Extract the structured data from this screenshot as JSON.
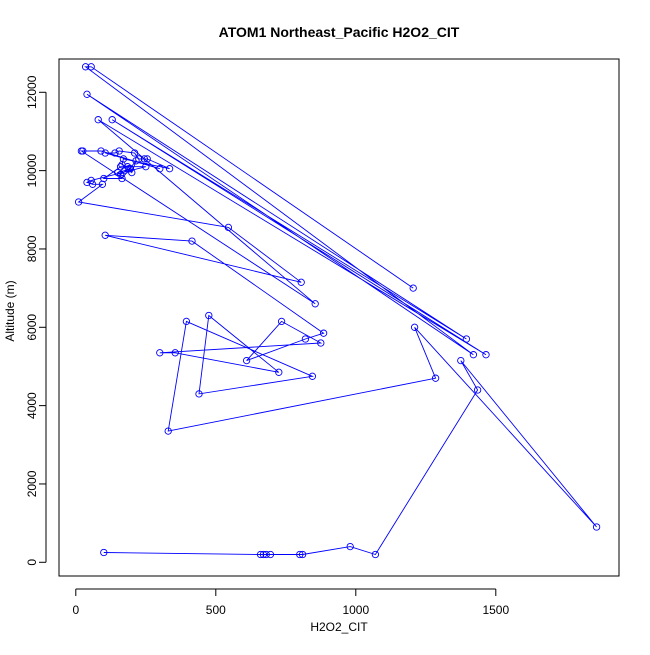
{
  "chart_data": {
    "type": "line",
    "title": "ATOM1 Northeast_Pacific H2O2_CIT",
    "xlabel": "H2O2_CIT",
    "ylabel": "Altitude (m)",
    "xlim": [
      -60,
      1940
    ],
    "ylim": [
      -350,
      12850
    ],
    "x_ticks": [
      0,
      500,
      1000,
      1500
    ],
    "y_ticks": [
      0,
      2000,
      4000,
      6000,
      8000,
      10000,
      12000
    ],
    "series": [
      {
        "color": "#0000ff",
        "marker": "open-circle",
        "x": [
          1205,
          55,
          35,
          1420,
          40,
          1395,
          130,
          1465,
          80,
          855,
          20,
          25,
          90,
          300,
          105,
          140,
          155,
          210,
          225,
          245,
          255,
          335,
          170,
          165,
          185,
          195,
          175,
          150,
          160,
          190,
          200,
          215,
          165,
          100,
          160,
          250,
          55,
          40,
          60,
          95,
          10,
          545,
          805,
          105,
          415,
          885,
          820,
          610,
          735,
          875,
          300,
          355,
          725,
          475,
          440,
          845,
          395,
          330,
          1285,
          1210,
          1860,
          1375,
          1435,
          1070,
          980,
          810,
          800,
          695,
          680,
          670,
          660,
          100
        ],
        "y": [
          7000,
          12650,
          12650,
          5300,
          11950,
          5700,
          11300,
          5300,
          11300,
          6600,
          10500,
          10500,
          10500,
          10050,
          10450,
          10450,
          10500,
          10450,
          10300,
          10300,
          10300,
          10050,
          10300,
          10150,
          10100,
          10050,
          10000,
          9950,
          9900,
          10050,
          9950,
          10250,
          9800,
          9800,
          10100,
          10100,
          9750,
          9700,
          9650,
          9650,
          9200,
          8550,
          7150,
          8350,
          8200,
          5850,
          5700,
          5150,
          6150,
          5600,
          5350,
          5350,
          4850,
          6300,
          4300,
          4750,
          6150,
          3350,
          4700,
          6000,
          900,
          5150,
          4400,
          200,
          400,
          200,
          200,
          200,
          200,
          200,
          200,
          250
        ]
      }
    ]
  }
}
